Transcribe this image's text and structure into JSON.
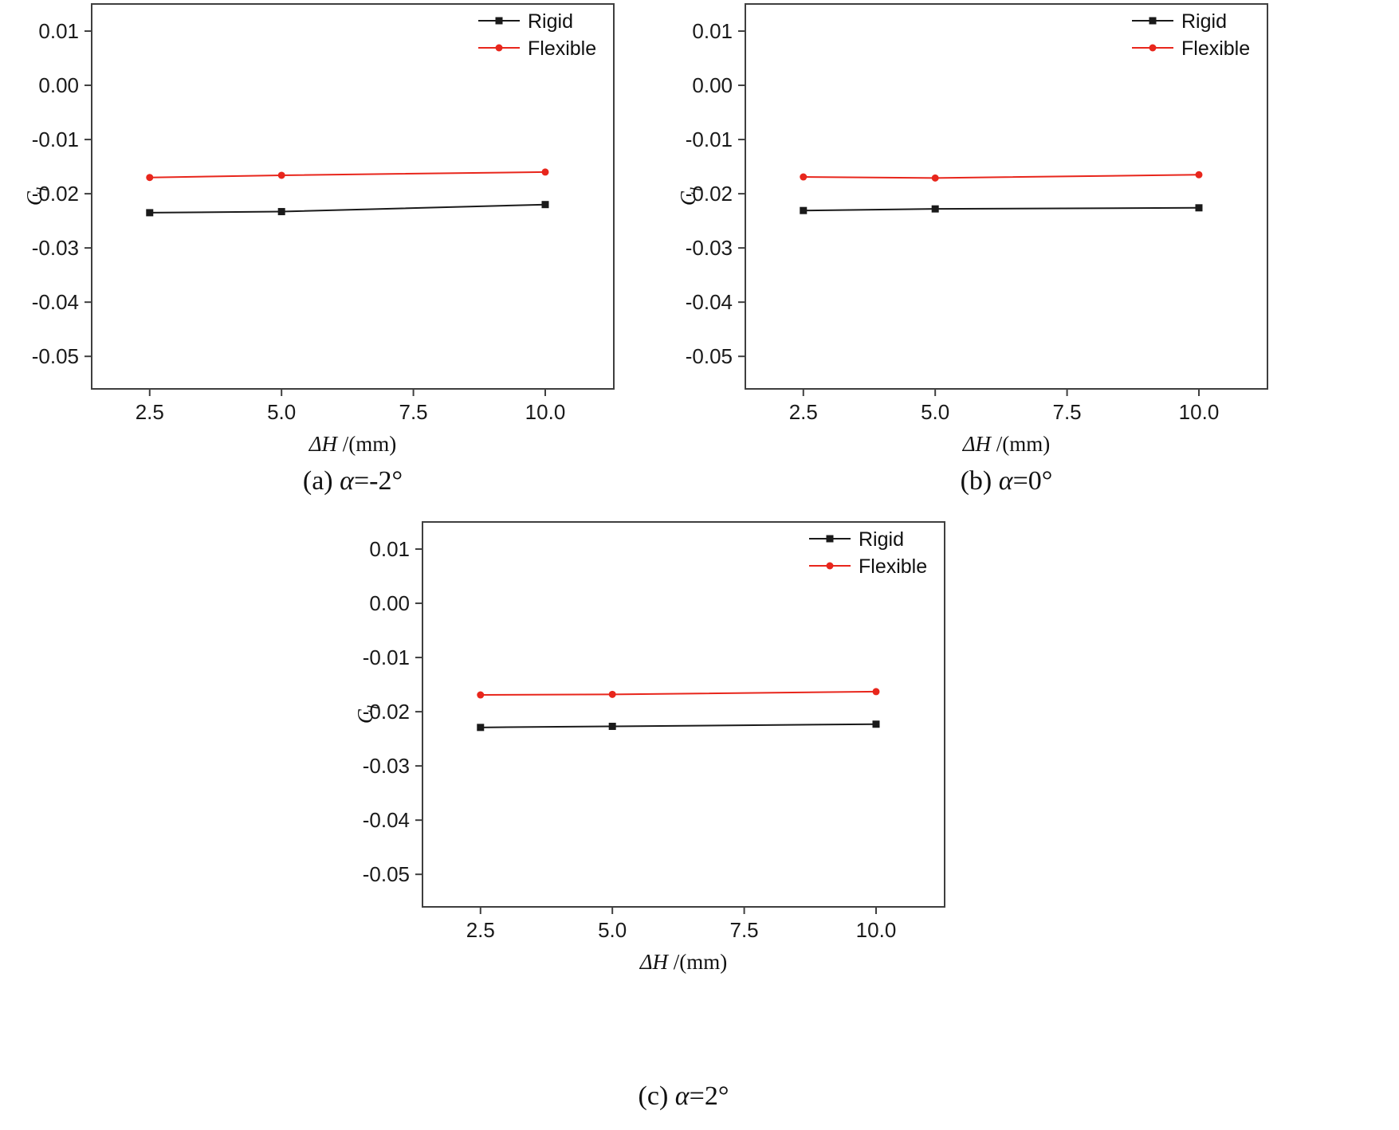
{
  "page": {
    "background": "#ffffff"
  },
  "chart_data": [
    {
      "type": "line",
      "caption_prefix": "(a) ",
      "caption_alpha": "α",
      "caption_rest": "=-2°",
      "xlabel_italic": "ΔH",
      "xlabel_rest": " /(mm)",
      "ylabel_main": "C",
      "ylabel_sub": "l",
      "xlim": [
        1.4,
        11.3
      ],
      "ylim": [
        -0.056,
        0.015
      ],
      "xticks": [
        "2.5",
        "5.0",
        "7.5",
        "10.0"
      ],
      "yticks": [
        "0.01",
        "0.00",
        "-0.01",
        "-0.02",
        "-0.03",
        "-0.04",
        "-0.05"
      ],
      "x": [
        2.5,
        5.0,
        10.0
      ],
      "grid": false,
      "legend_position": "top-right",
      "series": [
        {
          "name": "Rigid",
          "color": "#1a1a1a",
          "marker": "square",
          "values": [
            -0.0235,
            -0.0233,
            -0.022
          ]
        },
        {
          "name": "Flexible",
          "color": "#e8261c",
          "marker": "circle",
          "values": [
            -0.017,
            -0.0166,
            -0.016
          ]
        }
      ]
    },
    {
      "type": "line",
      "caption_prefix": "(b) ",
      "caption_alpha": "α",
      "caption_rest": "=0°",
      "xlabel_italic": "ΔH",
      "xlabel_rest": " /(mm)",
      "ylabel_main": "C",
      "ylabel_sub": "l",
      "xlim": [
        1.4,
        11.3
      ],
      "ylim": [
        -0.056,
        0.015
      ],
      "xticks": [
        "2.5",
        "5.0",
        "7.5",
        "10.0"
      ],
      "yticks": [
        "0.01",
        "0.00",
        "-0.01",
        "-0.02",
        "-0.03",
        "-0.04",
        "-0.05"
      ],
      "x": [
        2.5,
        5.0,
        10.0
      ],
      "grid": false,
      "legend_position": "top-right",
      "series": [
        {
          "name": "Rigid",
          "color": "#1a1a1a",
          "marker": "square",
          "values": [
            -0.0231,
            -0.0228,
            -0.0226
          ]
        },
        {
          "name": "Flexible",
          "color": "#e8261c",
          "marker": "circle",
          "values": [
            -0.0169,
            -0.0171,
            -0.0165
          ]
        }
      ]
    },
    {
      "type": "line",
      "caption_prefix": "(c) ",
      "caption_alpha": "α",
      "caption_rest": "=2°",
      "xlabel_italic": "ΔH",
      "xlabel_rest": " /(mm)",
      "ylabel_main": "C",
      "ylabel_sub": "l",
      "xlim": [
        1.4,
        11.3
      ],
      "ylim": [
        -0.056,
        0.015
      ],
      "xticks": [
        "2.5",
        "5.0",
        "7.5",
        "10.0"
      ],
      "yticks": [
        "0.01",
        "0.00",
        "-0.01",
        "-0.02",
        "-0.03",
        "-0.04",
        "-0.05"
      ],
      "x": [
        2.5,
        5.0,
        10.0
      ],
      "grid": false,
      "legend_position": "top-right",
      "series": [
        {
          "name": "Rigid",
          "color": "#1a1a1a",
          "marker": "square",
          "values": [
            -0.0229,
            -0.0227,
            -0.0223
          ]
        },
        {
          "name": "Flexible",
          "color": "#e8261c",
          "marker": "circle",
          "values": [
            -0.0169,
            -0.0168,
            -0.0163
          ]
        }
      ]
    }
  ]
}
